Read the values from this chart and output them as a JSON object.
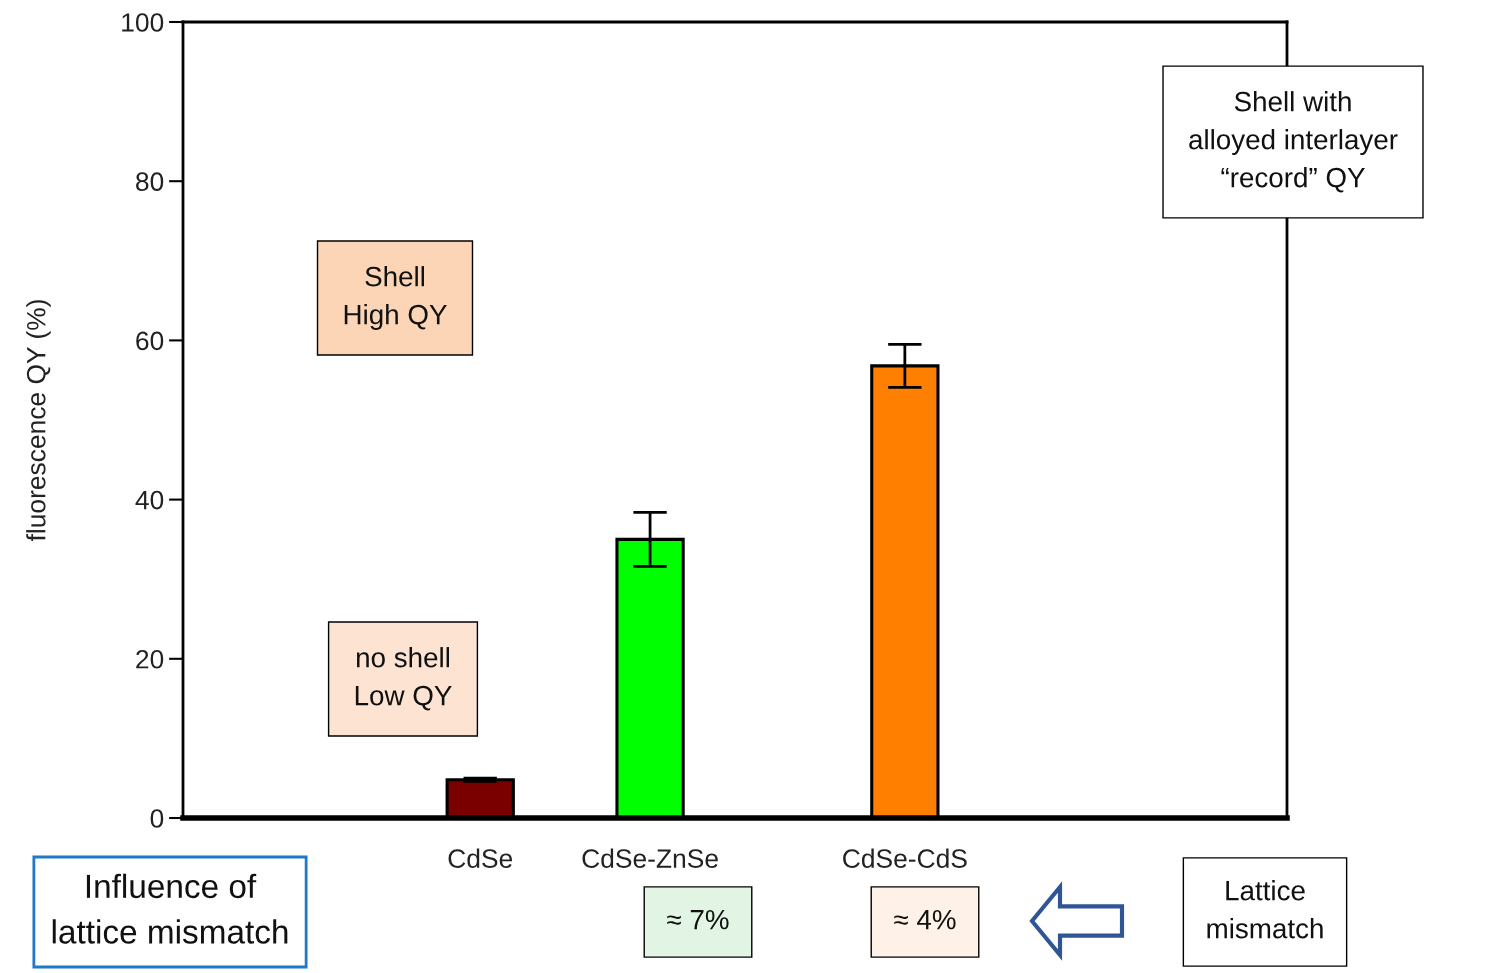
{
  "chart_data": {
    "type": "bar",
    "ylabel": "fluorescence QY (%)",
    "categories": [
      null,
      null,
      null,
      "CdSe",
      null,
      "CdSe-ZnSe",
      null,
      null,
      "CdSe-CdS",
      null,
      null,
      null,
      null
    ],
    "values": [
      null,
      null,
      null,
      4.8,
      null,
      35.0,
      null,
      null,
      56.8,
      null,
      null,
      null,
      null
    ],
    "colors": [
      "#7a0000",
      "#7a0000",
      "#7a0000",
      "#7a0000",
      "#00ff00",
      "#00ff00",
      "#ff8000",
      "#ff8000",
      "#ff8000",
      "#ff8000",
      "#ff8000",
      "#ff8000",
      "#ff8000"
    ],
    "errors": [
      null,
      null,
      null,
      0.2,
      null,
      3.4,
      null,
      null,
      2.7,
      null,
      null,
      null,
      null
    ],
    "ylim": [
      0,
      100
    ],
    "yticks": [
      0,
      20,
      40,
      60,
      80,
      100
    ],
    "grid": false,
    "annotations": [
      "Shell with\nalloyed interlayer\n“record” QY",
      "Shell\nHigh QY",
      "no shell\nLow QY",
      "≈ 7%",
      "≈ 4%",
      "Lattice\nmismatch",
      "Influence of\nlattice mismatch"
    ]
  }
}
